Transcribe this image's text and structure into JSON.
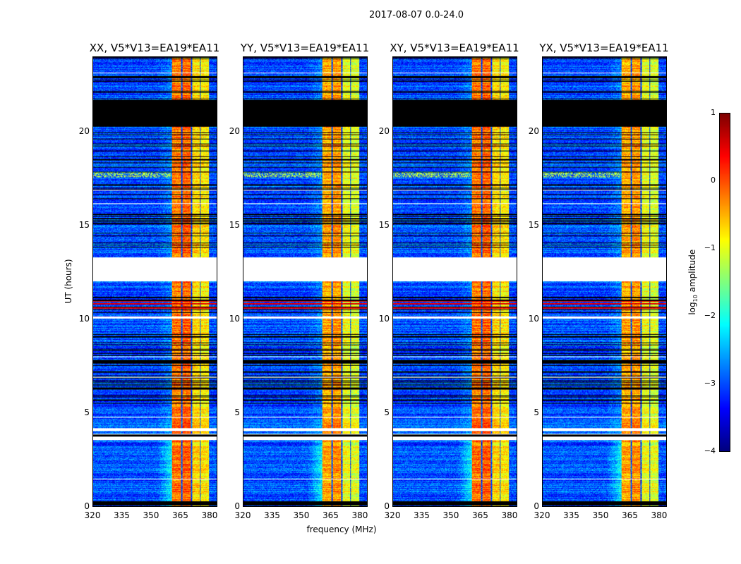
{
  "chart_data": {
    "type": "heatmap",
    "title": "2017-08-07 0.0-24.0",
    "xlabel": "frequency (MHz)",
    "ylabel": "UT (hours)",
    "xlim": [
      320,
      384
    ],
    "ylim": [
      0,
      24
    ],
    "xticks": [
      "320",
      "335",
      "350",
      "365",
      "380"
    ],
    "yticks": [
      "0",
      "5",
      "10",
      "15",
      "20"
    ],
    "panels": [
      {
        "title": "XX, V5*V13=EA19*EA11",
        "seed": 11
      },
      {
        "title": "YY, V5*V13=EA19*EA11",
        "seed": 23
      },
      {
        "title": "XY, V5*V13=EA19*EA11",
        "seed": 37
      },
      {
        "title": "YX, V5*V13=EA19*EA11",
        "seed": 41
      }
    ],
    "colorbar": {
      "label": "log10 amplitude",
      "label_main": "log",
      "label_sub": "10",
      "label_rest": " amplitude",
      "range": [
        -4,
        1
      ],
      "ticks": [
        "1",
        "0",
        "−1",
        "−2",
        "−3",
        "−4"
      ],
      "colormap": "jet"
    },
    "background_level": -3.0,
    "rfi_bands_mhz": [
      [
        360.5,
        365.5,
        -0.3
      ],
      [
        366,
        370.5,
        -0.2
      ],
      [
        371,
        375,
        -0.8
      ],
      [
        375.5,
        380,
        -0.9
      ]
    ],
    "flagged_white_hours": [
      [
        12.05,
        13.3
      ],
      [
        3.55,
        3.75
      ],
      [
        1.45,
        1.5
      ],
      [
        4.05,
        4.2
      ],
      [
        10.05,
        10.15
      ]
    ],
    "masked_black_hours": [
      [
        20.3,
        21.7
      ],
      [
        0.05,
        0.3
      ],
      [
        3.75,
        3.85
      ]
    ],
    "broadband_high_hours": [
      [
        10.3,
        11.2
      ]
    ]
  }
}
